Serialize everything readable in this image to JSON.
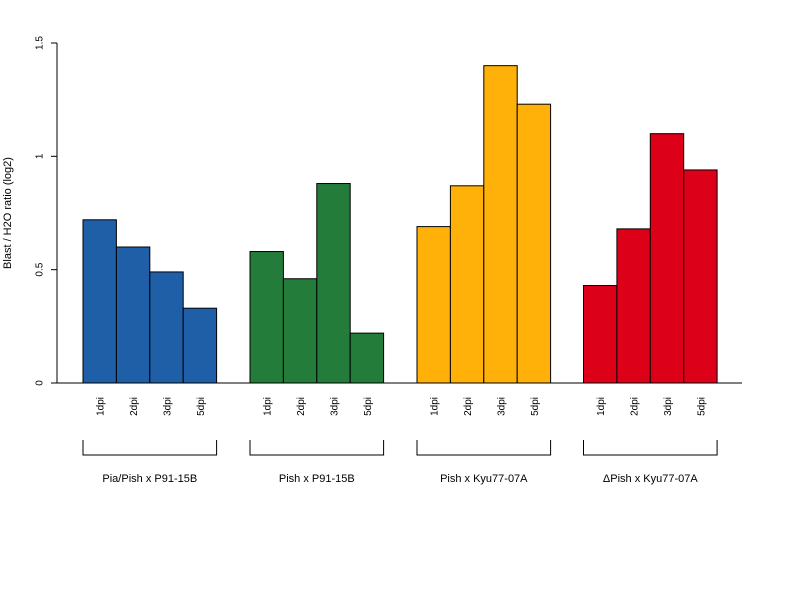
{
  "chart_data": {
    "type": "bar",
    "title": "",
    "ylabel": "Blast / H2O ratio (log2)",
    "xlabel": "",
    "ylim": [
      0,
      1.5
    ],
    "yticks": [
      0,
      0.5,
      1,
      1.5
    ],
    "ytick_labels": [
      "0",
      "0.5",
      "1",
      "1.5"
    ],
    "grid": false,
    "legend": "none",
    "groups": [
      {
        "label": "Pia/Pish x P91-15B",
        "color": "#1f5fa8",
        "categories": [
          "1dpi",
          "2dpi",
          "3dpi",
          "5dpi"
        ],
        "values": [
          0.72,
          0.6,
          0.49,
          0.33
        ]
      },
      {
        "label": "Pish x P91-15B",
        "color": "#237c3a",
        "categories": [
          "1dpi",
          "2dpi",
          "3dpi",
          "5dpi"
        ],
        "values": [
          0.58,
          0.46,
          0.88,
          0.22
        ]
      },
      {
        "label": "Pish x Kyu77-07A",
        "color": "#ffb10a",
        "categories": [
          "1dpi",
          "2dpi",
          "3dpi",
          "5dpi"
        ],
        "values": [
          0.69,
          0.87,
          1.4,
          1.23
        ]
      },
      {
        "label": "ΔPish x Kyu77-07A",
        "color": "#dd0019",
        "categories": [
          "1dpi",
          "2dpi",
          "3dpi",
          "5dpi"
        ],
        "values": [
          0.43,
          0.68,
          1.1,
          0.94
        ]
      }
    ]
  }
}
